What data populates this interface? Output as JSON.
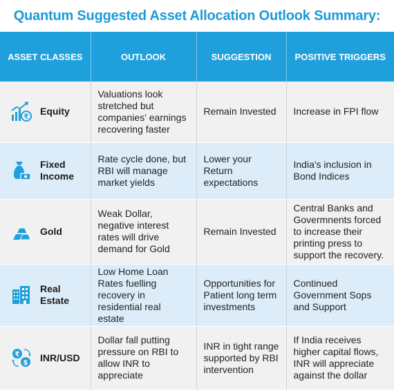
{
  "title": "Quantum Suggested Asset Allocation Outlook Summary:",
  "colors": {
    "accent": "#1fa0dc",
    "row_light": "#f1f1f1",
    "row_blue": "#dcedf9"
  },
  "headers": [
    "ASSET CLASSES",
    "OUTLOOK",
    "SUGGESTION",
    "POSITIVE TRIGGERS"
  ],
  "rows": [
    {
      "asset": "Equity",
      "icon": "growth-chart-rupee-icon",
      "outlook": "Valuations look stretched but companies' earnings recovering faster",
      "suggestion": "Remain Invested",
      "triggers": "Increase in FPI flow"
    },
    {
      "asset": "Fixed Income",
      "icon": "money-bag-icon",
      "outlook": "Rate cycle done, but RBI will manage market yields",
      "suggestion": "Lower your Return expectations",
      "triggers": "India's inclusion in Bond Indices"
    },
    {
      "asset": "Gold",
      "icon": "gold-bars-icon",
      "outlook": "Weak Dollar, negative interest rates will drive demand for Gold",
      "suggestion": "Remain Invested",
      "triggers": "Central Banks and Govermnents forced to increase their printing press to support the recovery."
    },
    {
      "asset": "Real Estate",
      "icon": "buildings-icon",
      "outlook": "Low Home Loan Rates fuelling recovery in residential real estate",
      "suggestion": "Opportunities for Patient long term investments",
      "triggers": "Continued Government Sops and Support"
    },
    {
      "asset": "INR/USD",
      "icon": "currency-exchange-icon",
      "outlook": "Dollar fall putting pressure on RBI to allow INR to appreciate",
      "suggestion": "INR in tight range supported by RBI intervention",
      "triggers": "If India receives higher capital flows, INR will appreciate against the dollar"
    }
  ]
}
